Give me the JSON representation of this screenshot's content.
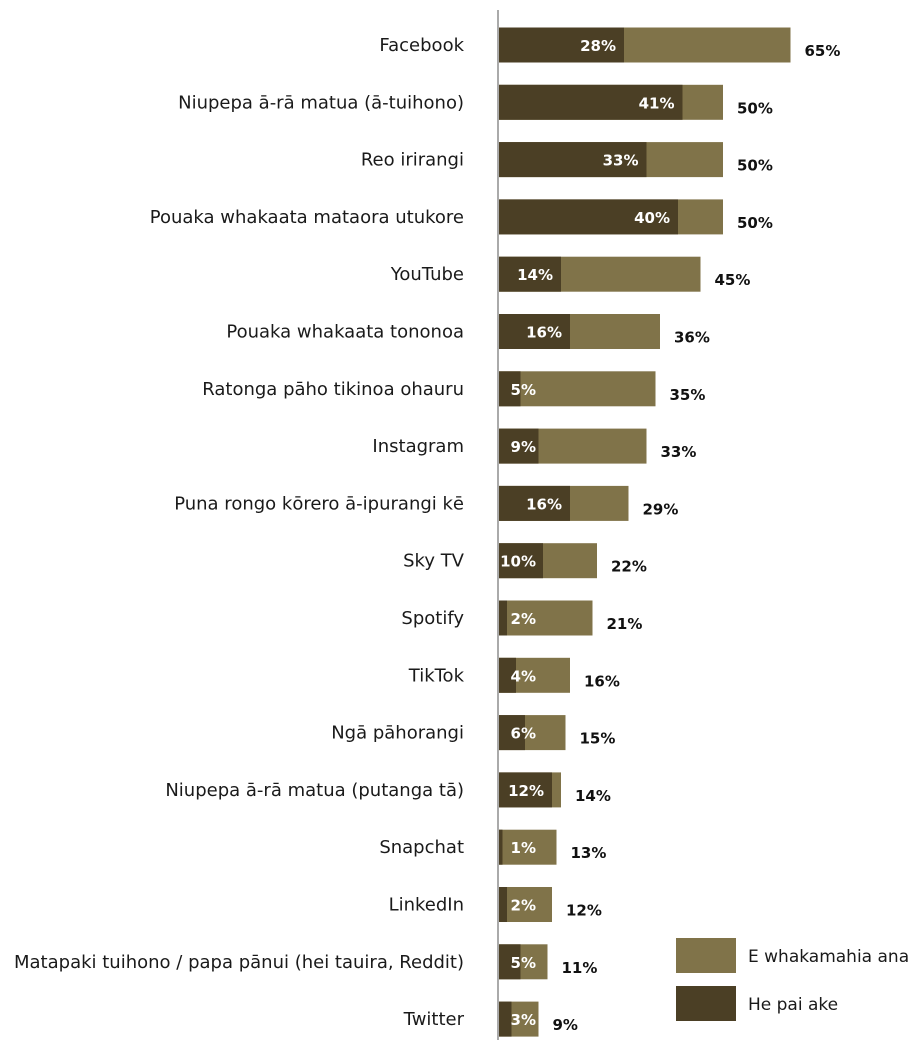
{
  "chart_data": {
    "type": "bar",
    "orientation": "horizontal",
    "stacking": "overlapped",
    "categories": [
      "Facebook",
      "Niupepa ā-rā matua (ā-tuihono)",
      "Reo irirangi",
      "Pouaka whakaata mataora utukore",
      "YouTube",
      "Pouaka whakaata tononoa",
      "Ratonga pāho tikinoa ohauru",
      "Instagram",
      "Puna rongo kōrero ā-ipurangi kē",
      "Sky TV",
      "Spotify",
      "TikTok",
      "Ngā pāhorangi",
      "Niupepa ā-rā matua (putanga tā)",
      "Snapchat",
      "LinkedIn",
      "Matapaki tuihono / papa pānui (hei tauira, Reddit)",
      "Twitter"
    ],
    "series": [
      {
        "name": "E whakamahia ana",
        "color": "#807349",
        "values": [
          65,
          50,
          50,
          50,
          45,
          36,
          35,
          33,
          29,
          22,
          21,
          16,
          15,
          14,
          13,
          12,
          11,
          9
        ],
        "labels": [
          "65%",
          "50%",
          "50%",
          "50%",
          "45%",
          "36%",
          "35%",
          "33%",
          "29%",
          "22%",
          "21%",
          "16%",
          "15%",
          "14%",
          "13%",
          "12%",
          "11%",
          "9%"
        ]
      },
      {
        "name": "He pai ake",
        "color": "#4b3f25",
        "values": [
          28,
          41,
          33,
          40,
          14,
          16,
          5,
          9,
          16,
          10,
          2,
          4,
          6,
          12,
          1,
          2,
          5,
          3
        ],
        "labels": [
          "28%",
          "41%",
          "33%",
          "40%",
          "14%",
          "16%",
          "5%",
          "9%",
          "16%",
          "10%",
          "2%",
          "4%",
          "6%",
          "12%",
          "1%",
          "2%",
          "5%",
          "3%"
        ]
      }
    ],
    "xlim": [
      0,
      100
    ],
    "grid": false,
    "legend": "bottom-right",
    "axis_line_color": "#aaaaaa"
  }
}
